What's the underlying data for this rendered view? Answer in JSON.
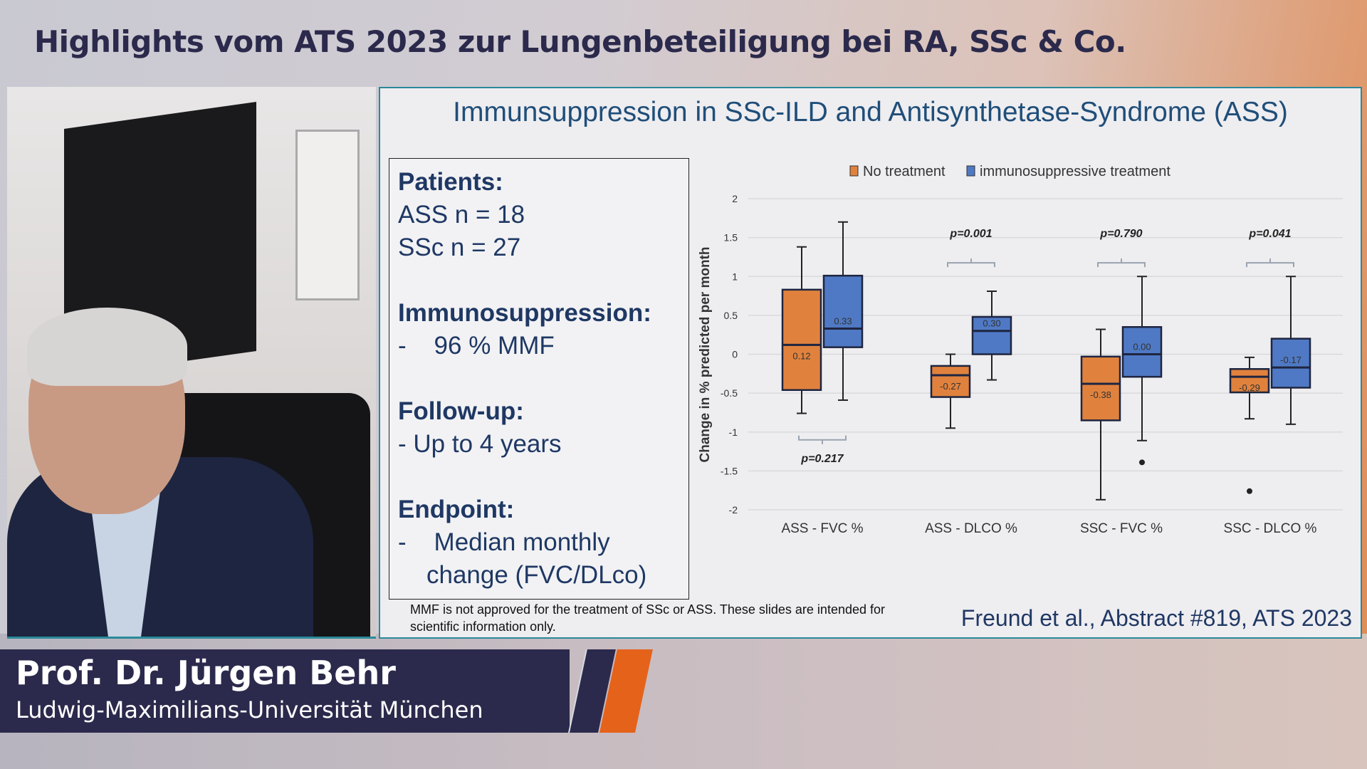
{
  "header": {
    "title": "Highlights vom ATS 2023 zur Lungenbeteiligung bei RA, SSc & Co."
  },
  "slide": {
    "title": "Immunsuppression in SSc-ILD and Antisynthetase-Syndrome (ASS)",
    "textbox": {
      "patients_h": "Patients:",
      "patients_1": "ASS n = 18",
      "patients_2": "SSc n = 27",
      "immuno_h": "Immunosuppression:",
      "immuno_1": "-    96 % MMF",
      "follow_h": "Follow-up:",
      "follow_1": "- Up to 4 years",
      "end_h": "Endpoint:",
      "end_1": "-    Median monthly",
      "end_2": "change (FVC/DLco)"
    },
    "disclaimer": "MMF is not approved for the treatment of SSc or ASS. These slides are intended for scientific information only.",
    "citation": "Freund et al., Abstract #819, ATS 2023"
  },
  "lower_third": {
    "name": "Prof. Dr. Jürgen Behr",
    "affiliation": "Ludwig-Maximilians-Universität München"
  },
  "colors": {
    "no_treatment": "#e0823e",
    "immuno": "#4f79c4",
    "title": "#1f4e79",
    "accent": "#e5621b",
    "navy": "#2b2a4c"
  },
  "chart_data": {
    "type": "box",
    "ylabel": "Change in % predicted per month",
    "ylim": [
      -2,
      2
    ],
    "yticks": [
      "2",
      "1.5",
      "1",
      "0.5",
      "0",
      "-0.5",
      "-1",
      "-1.5",
      "-2"
    ],
    "ytick_values": [
      2,
      1.5,
      1,
      0.5,
      0,
      -0.5,
      -1,
      -1.5,
      -2
    ],
    "legend": [
      "No treatment",
      "immunosuppressive treatment"
    ],
    "legend_position": "top",
    "categories": [
      "ASS - FVC %",
      "ASS - DLCO %",
      "SSC - FVC %",
      "SSC - DLCO %"
    ],
    "p_values": [
      "p=0.217",
      "p=0.001",
      "p=0.790",
      "p=0.041"
    ],
    "series": [
      {
        "name": "No treatment",
        "boxes": [
          {
            "min": -0.76,
            "q1": -0.46,
            "median": 0.12,
            "q3": 0.83,
            "max": 1.38,
            "label": "0.12",
            "outliers": []
          },
          {
            "min": -0.95,
            "q1": -0.55,
            "median": -0.27,
            "q3": -0.15,
            "max": 0.0,
            "label": "-0.27",
            "outliers": []
          },
          {
            "min": -1.87,
            "q1": -0.85,
            "median": -0.38,
            "q3": -0.03,
            "max": 0.32,
            "label": "-0.38",
            "outliers": []
          },
          {
            "min": -0.83,
            "q1": -0.49,
            "median": -0.29,
            "q3": -0.19,
            "max": -0.04,
            "label": "-0.29",
            "outliers": [
              -1.76
            ]
          }
        ]
      },
      {
        "name": "immunosuppressive treatment",
        "boxes": [
          {
            "min": -0.59,
            "q1": 0.09,
            "median": 0.33,
            "q3": 1.01,
            "max": 1.7,
            "label": "0.33",
            "outliers": []
          },
          {
            "min": -0.33,
            "q1": 0.0,
            "median": 0.3,
            "q3": 0.48,
            "max": 0.81,
            "label": "0.30",
            "outliers": []
          },
          {
            "min": -1.11,
            "q1": -0.29,
            "median": 0.0,
            "q3": 0.35,
            "max": 1.0,
            "label": "0.00",
            "outliers": [
              -1.39
            ]
          },
          {
            "min": -0.9,
            "q1": -0.43,
            "median": -0.17,
            "q3": 0.2,
            "max": 1.0,
            "label": "-0.17",
            "outliers": []
          }
        ]
      }
    ]
  }
}
